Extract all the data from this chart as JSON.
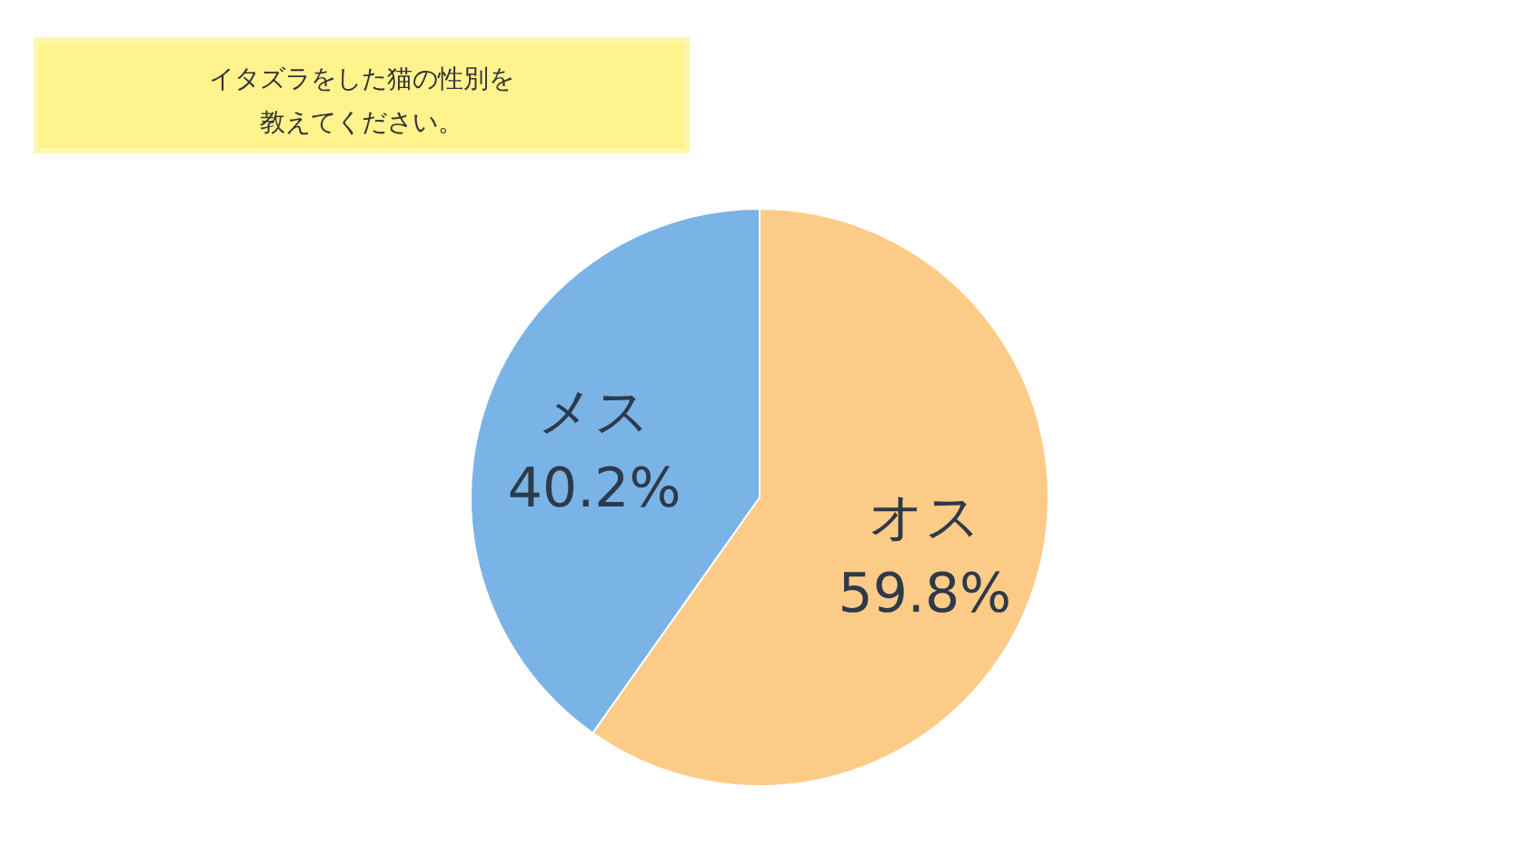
{
  "chart_data": {
    "type": "pie",
    "title": "イタズラをした猫の性別を教えてください。",
    "categories": [
      "オス",
      "メス"
    ],
    "values": [
      59.8,
      40.2
    ],
    "colors": [
      "#fdcb88",
      "#7ab3e6"
    ],
    "value_labels": [
      "59.8%",
      "40.2%"
    ],
    "legend": false
  }
}
